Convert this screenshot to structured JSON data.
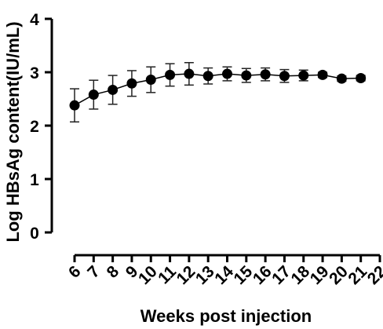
{
  "chart_data": {
    "type": "scatter",
    "title": "",
    "xlabel": "Weeks post injection",
    "ylabel": "Log HBsAg content(IU/mL)",
    "xlim": [
      6,
      22
    ],
    "ylim": [
      0,
      4
    ],
    "x_ticks": [
      "6",
      "7",
      "8",
      "9",
      "10",
      "11",
      "12",
      "13",
      "14",
      "15",
      "16",
      "17",
      "18",
      "19",
      "20",
      "21",
      "22"
    ],
    "y_ticks": [
      "0",
      "1",
      "2",
      "3",
      "4"
    ],
    "grid": false,
    "legend": "none",
    "series": [
      {
        "x": [
          6,
          7,
          8,
          9,
          10,
          11,
          12,
          13,
          14,
          15,
          16,
          17,
          18,
          19,
          20,
          21
        ],
        "y": [
          2.38,
          2.58,
          2.67,
          2.79,
          2.86,
          2.95,
          2.97,
          2.93,
          2.97,
          2.94,
          2.96,
          2.93,
          2.94,
          2.95,
          2.88,
          2.89
        ],
        "error": [
          0.31,
          0.27,
          0.27,
          0.24,
          0.24,
          0.21,
          0.21,
          0.15,
          0.13,
          0.13,
          0.12,
          0.12,
          0.1,
          0.05,
          0.05,
          0.05
        ],
        "color": "#000000"
      }
    ]
  }
}
